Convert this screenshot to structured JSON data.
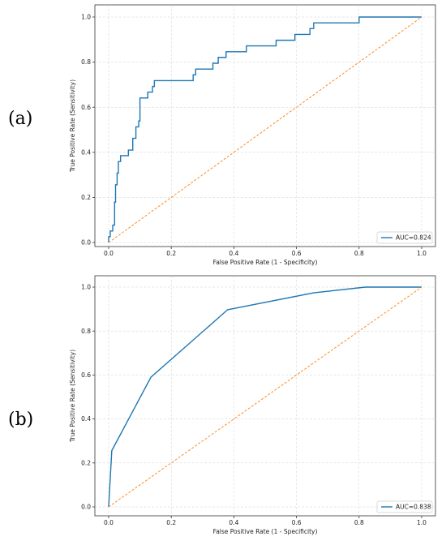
{
  "panels": [
    {
      "label": "(a)"
    },
    {
      "label": "(b)"
    }
  ],
  "chart_data": [
    {
      "type": "line",
      "xlabel": "False Positive Rate (1 - Specificity)",
      "ylabel": "True Positive Rate (Sensitivity)",
      "xlim": [
        0,
        1
      ],
      "ylim": [
        0,
        1
      ],
      "xticks": [
        "0.0",
        "0.2",
        "0.4",
        "0.6",
        "0.8",
        "1.0"
      ],
      "yticks": [
        "0.0",
        "0.2",
        "0.4",
        "0.6",
        "0.8",
        "1.0"
      ],
      "grid": true,
      "legend_position": "lower-right",
      "colors": {
        "roc": "#1f77b4",
        "diagonal": "#ff7f0e"
      },
      "series": [
        {
          "name": "AUC=0.824",
          "style": "solid",
          "x": [
            0,
            0,
            0.005,
            0.005,
            0.013,
            0.013,
            0.019,
            0.019,
            0.022,
            0.022,
            0.027,
            0.027,
            0.031,
            0.031,
            0.038,
            0.038,
            0.063,
            0.063,
            0.077,
            0.077,
            0.087,
            0.087,
            0.096,
            0.096,
            0.1,
            0.1,
            0.125,
            0.125,
            0.14,
            0.14,
            0.146,
            0.146,
            0.152,
            0.152,
            0.27,
            0.27,
            0.278,
            0.278,
            0.333,
            0.333,
            0.35,
            0.35,
            0.375,
            0.375,
            0.44,
            0.44,
            0.535,
            0.535,
            0.57,
            0.57,
            0.595,
            0.595,
            0.643,
            0.643,
            0.655,
            0.655,
            0.667,
            0.667,
            0.8,
            0.8,
            1.0
          ],
          "y": [
            0,
            0.026,
            0.026,
            0.051,
            0.051,
            0.077,
            0.077,
            0.179,
            0.179,
            0.256,
            0.256,
            0.308,
            0.308,
            0.359,
            0.359,
            0.385,
            0.385,
            0.41,
            0.41,
            0.462,
            0.462,
            0.513,
            0.513,
            0.539,
            0.539,
            0.641,
            0.641,
            0.667,
            0.667,
            0.692,
            0.692,
            0.718,
            0.718,
            0.718,
            0.718,
            0.744,
            0.744,
            0.769,
            0.769,
            0.795,
            0.795,
            0.821,
            0.821,
            0.846,
            0.846,
            0.872,
            0.872,
            0.897,
            0.897,
            0.897,
            0.897,
            0.923,
            0.923,
            0.949,
            0.949,
            0.974,
            0.974,
            0.974,
            0.974,
            1.0,
            1.0
          ]
        },
        {
          "name": "",
          "style": "dashed",
          "x": [
            0,
            1
          ],
          "y": [
            0,
            1
          ]
        }
      ]
    },
    {
      "type": "line",
      "xlabel": "False Positive Rate (1 - Specificity)",
      "ylabel": "True Positive Rate (Sensitivity)",
      "xlim": [
        0,
        1
      ],
      "ylim": [
        0,
        1
      ],
      "xticks": [
        "0.0",
        "0.2",
        "0.4",
        "0.6",
        "0.8",
        "1.0"
      ],
      "yticks": [
        "0.0",
        "0.2",
        "0.4",
        "0.6",
        "0.8",
        "1.0"
      ],
      "grid": true,
      "legend_position": "lower-right",
      "colors": {
        "roc": "#1f77b4",
        "diagonal": "#ff7f0e"
      },
      "series": [
        {
          "name": "AUC=0.838",
          "style": "solid",
          "x": [
            0,
            0.01,
            0.135,
            0.38,
            0.655,
            0.82,
            1.0
          ],
          "y": [
            0,
            0.256,
            0.59,
            0.897,
            0.974,
            1.0,
            1.0
          ]
        },
        {
          "name": "",
          "style": "dashed",
          "x": [
            0,
            1
          ],
          "y": [
            0,
            1
          ]
        }
      ]
    }
  ]
}
